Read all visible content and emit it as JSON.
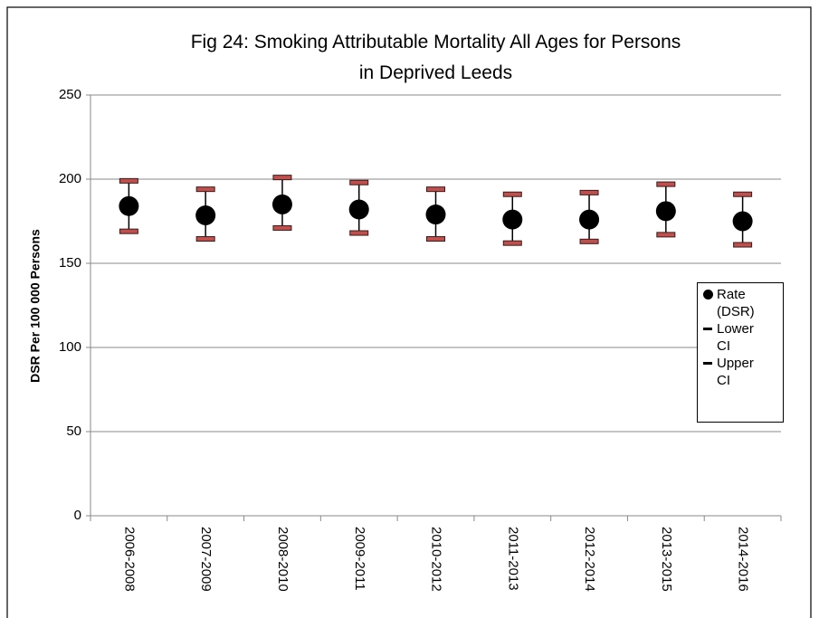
{
  "chart_data": {
    "type": "dot",
    "title": "Fig 24: Smoking Attributable Mortality All Ages for Persons\nin Deprived Leeds",
    "y_label": "DSR Per 100 000 Persons",
    "categories": [
      "2006-2008",
      "2007-2009",
      "2008-2010",
      "2009-2011",
      "2010-2012",
      "2011-2013",
      "2012-2014",
      "2013-2015",
      "2014-2016"
    ],
    "series": [
      {
        "name": "Rate (DSR)",
        "color": "#000000",
        "values": [
          184,
          178.5,
          185,
          182,
          179,
          176,
          176,
          181,
          175
        ]
      },
      {
        "name": "Lower CI",
        "color": "#c0504d",
        "values": [
          169,
          164.5,
          171,
          168,
          164.5,
          162,
          163,
          167,
          161
        ]
      },
      {
        "name": "Upper CI",
        "color": "#c0504d",
        "values": [
          199,
          194,
          201,
          198,
          194,
          191,
          192,
          197,
          191
        ]
      }
    ],
    "ylim": [
      0,
      250
    ],
    "yticks": [
      0,
      50,
      100,
      150,
      200,
      250
    ],
    "grid": true
  }
}
